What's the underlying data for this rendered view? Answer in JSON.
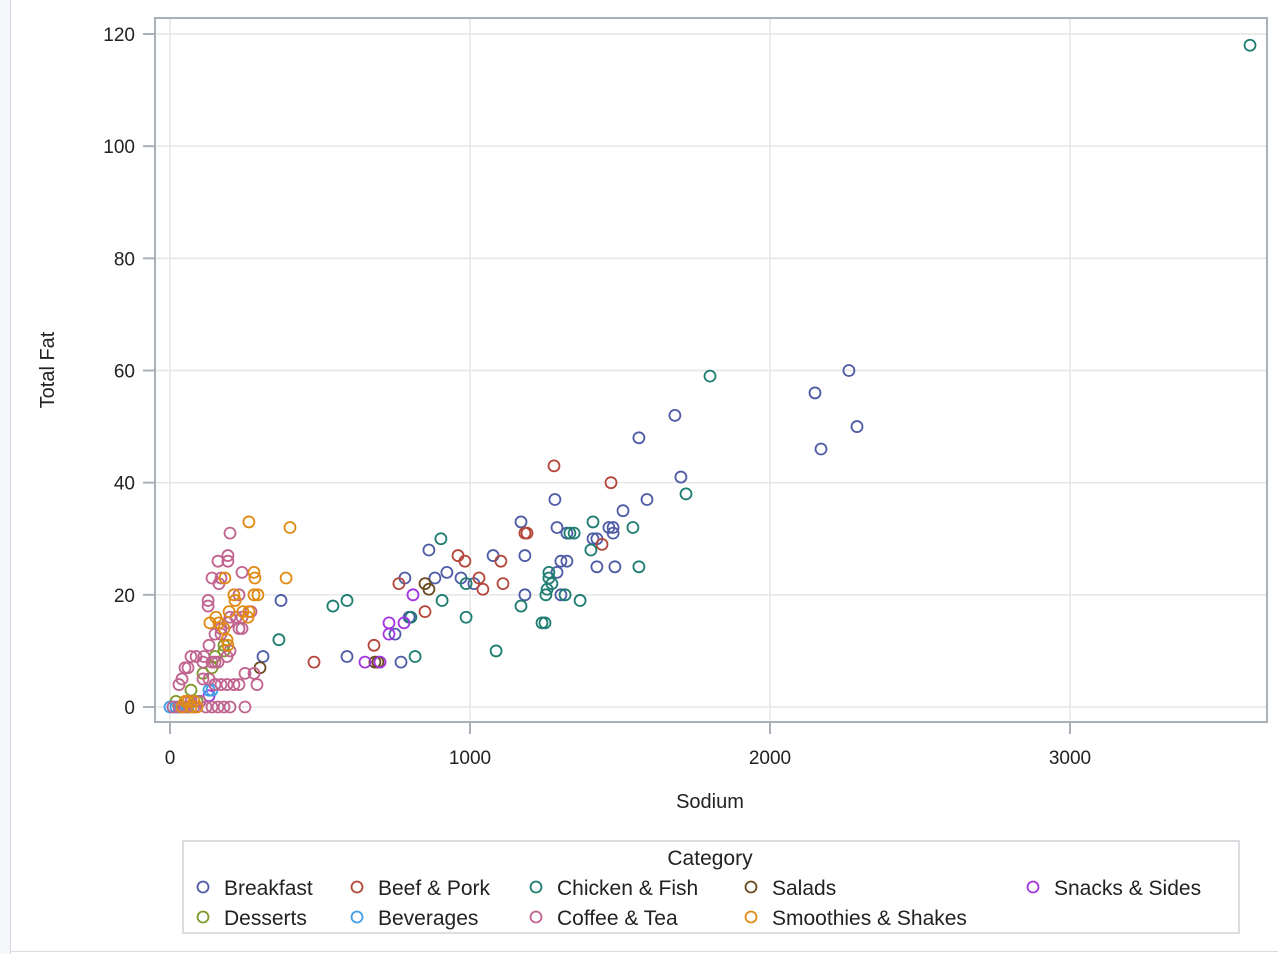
{
  "chart_data": {
    "type": "scatter",
    "title": "",
    "xlabel": "Sodium",
    "ylabel": "Total Fat",
    "xlim": [
      -50,
      3650
    ],
    "ylim": [
      -3,
      123
    ],
    "xticks": [
      0,
      1000,
      2000,
      3000
    ],
    "yticks": [
      0,
      20,
      40,
      60,
      80,
      100,
      120
    ],
    "grid": true,
    "legend": {
      "title": "Category",
      "position": "bottom"
    },
    "series": [
      {
        "name": "Breakfast",
        "color": "#4e5ba6",
        "points": [
          [
            2263,
            60
          ],
          [
            2150,
            56
          ],
          [
            2290,
            50
          ],
          [
            2170,
            46
          ],
          [
            1683,
            52
          ],
          [
            1563,
            48
          ],
          [
            1703,
            41
          ],
          [
            1590,
            37
          ],
          [
            1510,
            35
          ],
          [
            1283,
            37
          ],
          [
            1170,
            33
          ],
          [
            1290,
            32
          ],
          [
            1323,
            31
          ],
          [
            1410,
            30
          ],
          [
            1463,
            32
          ],
          [
            1477,
            31
          ],
          [
            1303,
            26
          ],
          [
            1323,
            26
          ],
          [
            1183,
            27
          ],
          [
            1077,
            27
          ],
          [
            1423,
            25
          ],
          [
            1483,
            25
          ],
          [
            1290,
            24
          ],
          [
            923,
            24
          ],
          [
            883,
            23
          ],
          [
            863,
            28
          ],
          [
            783,
            23
          ],
          [
            1183,
            20
          ],
          [
            1303,
            20
          ],
          [
            370,
            19
          ],
          [
            590,
            9
          ],
          [
            310,
            9
          ],
          [
            770,
            8
          ],
          [
            750,
            13
          ],
          [
            797,
            16
          ],
          [
            970,
            23
          ],
          [
            1423,
            30
          ],
          [
            1477,
            32
          ],
          [
            1013,
            22
          ]
        ]
      },
      {
        "name": "Beef & Pork",
        "color": "#b5473a",
        "points": [
          [
            1280,
            43
          ],
          [
            1470,
            40
          ],
          [
            1183,
            31
          ],
          [
            1190,
            31
          ],
          [
            1440,
            29
          ],
          [
            960,
            27
          ],
          [
            983,
            26
          ],
          [
            1103,
            26
          ],
          [
            1030,
            23
          ],
          [
            1043,
            21
          ],
          [
            1110,
            22
          ],
          [
            763,
            22
          ],
          [
            850,
            17
          ],
          [
            680,
            11
          ],
          [
            480,
            8
          ]
        ]
      },
      {
        "name": "Chicken & Fish",
        "color": "#1e7d70",
        "points": [
          [
            3600,
            118
          ],
          [
            1800,
            59
          ],
          [
            1720,
            38
          ],
          [
            903,
            30
          ],
          [
            1410,
            33
          ],
          [
            1543,
            32
          ],
          [
            1333,
            31
          ],
          [
            1347,
            31
          ],
          [
            1403,
            28
          ],
          [
            1263,
            24
          ],
          [
            1263,
            23
          ],
          [
            1257,
            21
          ],
          [
            1253,
            20
          ],
          [
            1273,
            22
          ],
          [
            1563,
            25
          ],
          [
            1317,
            20
          ],
          [
            1367,
            19
          ],
          [
            1170,
            18
          ],
          [
            987,
            22
          ],
          [
            907,
            19
          ],
          [
            1240,
            15
          ],
          [
            1250,
            15
          ],
          [
            987,
            16
          ],
          [
            817,
            9
          ],
          [
            1087,
            10
          ],
          [
            590,
            19
          ],
          [
            543,
            18
          ],
          [
            363,
            12
          ],
          [
            803,
            16
          ]
        ]
      },
      {
        "name": "Salads",
        "color": "#6b4a1e",
        "points": [
          [
            850,
            22
          ],
          [
            863,
            21
          ],
          [
            300,
            7
          ],
          [
            683,
            8
          ],
          [
            693,
            8
          ]
        ]
      },
      {
        "name": "Snacks & Sides",
        "color": "#a335e0",
        "points": [
          [
            810,
            20
          ],
          [
            730,
            15
          ],
          [
            730,
            13
          ],
          [
            780,
            15
          ],
          [
            650,
            8
          ],
          [
            700,
            8
          ],
          [
            130,
            2
          ],
          [
            150,
            4
          ],
          [
            100,
            1
          ]
        ]
      },
      {
        "name": "Desserts",
        "color": "#7d9a2a",
        "points": [
          [
            20,
            1
          ],
          [
            70,
            3
          ],
          [
            110,
            6
          ],
          [
            140,
            7
          ],
          [
            150,
            9
          ],
          [
            180,
            11
          ],
          [
            180,
            10
          ],
          [
            90,
            1
          ],
          [
            60,
            0
          ]
        ]
      },
      {
        "name": "Beverages",
        "color": "#3f9ee8",
        "points": [
          [
            0,
            0
          ],
          [
            20,
            0
          ],
          [
            40,
            0
          ],
          [
            60,
            0
          ],
          [
            80,
            0
          ],
          [
            130,
            3
          ],
          [
            140,
            3
          ],
          [
            100,
            1
          ],
          [
            10,
            0
          ],
          [
            30,
            0
          ]
        ]
      },
      {
        "name": "Coffee & Tea",
        "color": "#c0648f",
        "points": [
          [
            200,
            31
          ],
          [
            193,
            27
          ],
          [
            193,
            26
          ],
          [
            160,
            26
          ],
          [
            170,
            23
          ],
          [
            163,
            22
          ],
          [
            140,
            23
          ],
          [
            127,
            19
          ],
          [
            127,
            18
          ],
          [
            240,
            24
          ],
          [
            230,
            20
          ],
          [
            270,
            17
          ],
          [
            240,
            16
          ],
          [
            220,
            16
          ],
          [
            200,
            16
          ],
          [
            193,
            15
          ],
          [
            170,
            14
          ],
          [
            150,
            13
          ],
          [
            130,
            11
          ],
          [
            113,
            9
          ],
          [
            110,
            8
          ],
          [
            87,
            9
          ],
          [
            70,
            9
          ],
          [
            60,
            7
          ],
          [
            50,
            7
          ],
          [
            40,
            5
          ],
          [
            30,
            4
          ],
          [
            140,
            8
          ],
          [
            150,
            8
          ],
          [
            160,
            8
          ],
          [
            190,
            9
          ],
          [
            200,
            10
          ],
          [
            170,
            13
          ],
          [
            230,
            14
          ],
          [
            240,
            14
          ],
          [
            250,
            6
          ],
          [
            280,
            6
          ],
          [
            290,
            4
          ],
          [
            230,
            4
          ],
          [
            213,
            4
          ],
          [
            190,
            4
          ],
          [
            170,
            4
          ],
          [
            150,
            4
          ],
          [
            110,
            5
          ],
          [
            130,
            5
          ],
          [
            100,
            1
          ],
          [
            120,
            0
          ],
          [
            140,
            0
          ],
          [
            160,
            0
          ],
          [
            180,
            0
          ],
          [
            200,
            0
          ],
          [
            250,
            0
          ],
          [
            10,
            0
          ],
          [
            30,
            0
          ],
          [
            50,
            0
          ],
          [
            60,
            1
          ],
          [
            80,
            0
          ],
          [
            70,
            1
          ]
        ]
      },
      {
        "name": "Smoothies & Shakes",
        "color": "#e08a14",
        "points": [
          [
            263,
            33
          ],
          [
            400,
            32
          ],
          [
            280,
            24
          ],
          [
            283,
            23
          ],
          [
            387,
            23
          ],
          [
            183,
            23
          ],
          [
            213,
            20
          ],
          [
            217,
            19
          ],
          [
            280,
            20
          ],
          [
            293,
            20
          ],
          [
            197,
            17
          ],
          [
            243,
            17
          ],
          [
            263,
            17
          ],
          [
            260,
            16
          ],
          [
            153,
            16
          ],
          [
            163,
            15
          ],
          [
            133,
            15
          ],
          [
            180,
            14
          ],
          [
            190,
            12
          ],
          [
            193,
            11
          ],
          [
            60,
            1
          ],
          [
            80,
            1
          ],
          [
            50,
            1
          ],
          [
            40,
            0
          ],
          [
            70,
            0
          ],
          [
            90,
            0
          ]
        ]
      }
    ]
  }
}
